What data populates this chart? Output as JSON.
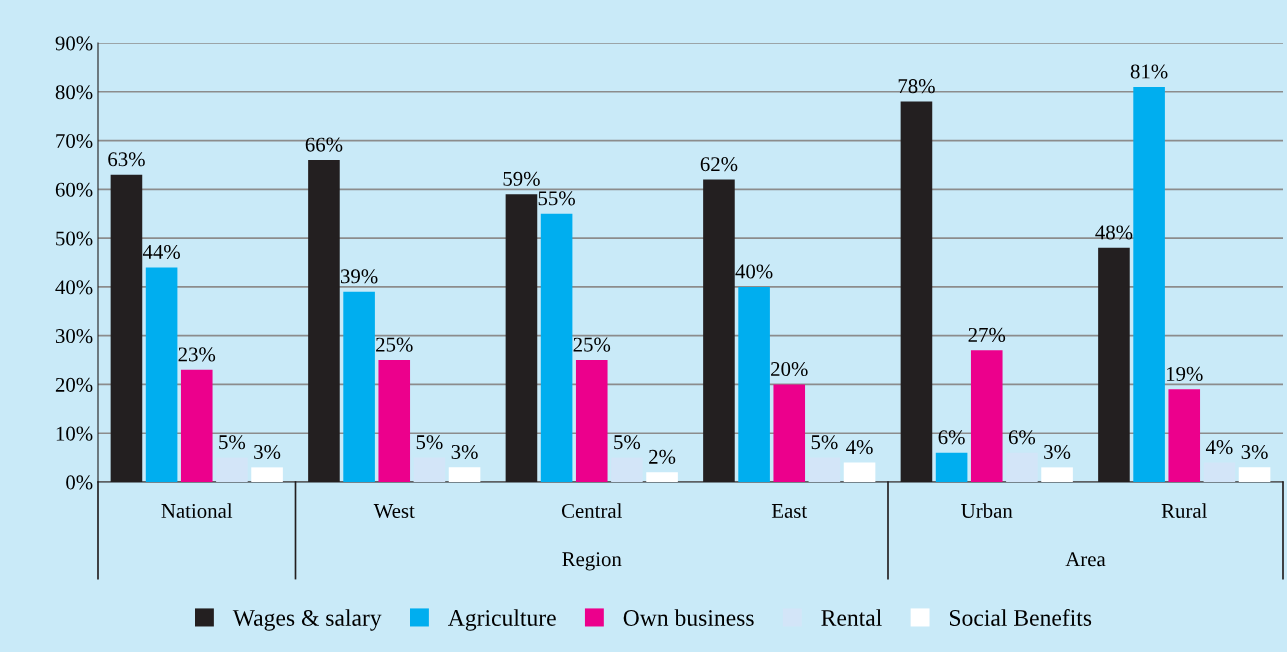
{
  "chart_data": {
    "type": "bar",
    "categories": [
      "National",
      "West",
      "Central",
      "East",
      "Urban",
      "Rural"
    ],
    "series": [
      {
        "name": "Wages & salary",
        "color": "#231f20",
        "values": [
          63,
          66,
          59,
          62,
          78,
          48
        ],
        "value_labels": [
          "63%",
          "66%",
          "59%",
          "62%",
          "78%",
          "48%"
        ]
      },
      {
        "name": "Agriculture",
        "color": "#00aeef",
        "values": [
          44,
          39,
          55,
          40,
          6,
          81
        ],
        "value_labels": [
          "44%",
          "39%",
          "55%",
          "40%",
          "6%",
          "81%"
        ]
      },
      {
        "name": "Own business",
        "color": "#ec008c",
        "values": [
          23,
          25,
          25,
          20,
          27,
          19
        ],
        "value_labels": [
          "23%",
          "25%",
          "25%",
          "20%",
          "27%",
          "19%"
        ]
      },
      {
        "name": "Rental",
        "color": "#d3e5f8",
        "values": [
          5,
          5,
          5,
          5,
          6,
          4
        ],
        "value_labels": [
          "5%",
          "5%",
          "5%",
          "5%",
          "6%",
          "4%"
        ]
      },
      {
        "name": "Social Benefits",
        "color": "#ffffff",
        "values": [
          3,
          3,
          2,
          4,
          3,
          3
        ],
        "value_labels": [
          "3%",
          "3%",
          "2%",
          "4%",
          "3%",
          "3%"
        ]
      }
    ],
    "annotations": [
      "Region",
      "Area"
    ],
    "ylim": [
      0,
      90
    ],
    "yticks": [
      {
        "value": 0,
        "label": "0%"
      },
      {
        "value": 10,
        "label": "10%"
      },
      {
        "value": 20,
        "label": "20%"
      },
      {
        "value": 30,
        "label": "30%"
      },
      {
        "value": 40,
        "label": "40%"
      },
      {
        "value": 50,
        "label": "50%"
      },
      {
        "value": 60,
        "label": "60%"
      },
      {
        "value": 70,
        "label": "70%"
      },
      {
        "value": 80,
        "label": "80%"
      },
      {
        "value": 90,
        "label": "90%"
      }
    ],
    "grid": "y",
    "legend": "bottom"
  }
}
